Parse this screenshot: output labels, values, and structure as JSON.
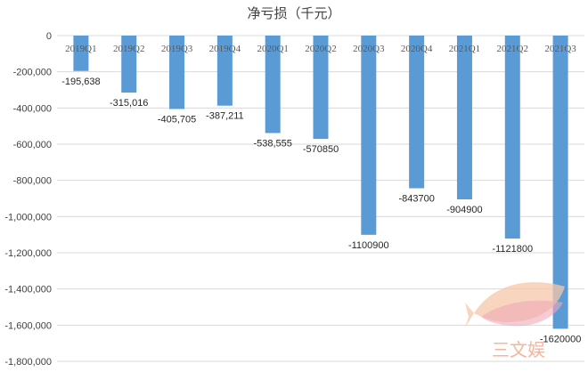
{
  "chart_data": {
    "type": "bar",
    "title": "净亏损（千元）",
    "xlabel": "",
    "ylabel": "",
    "ylim": [
      -1800000,
      0
    ],
    "yticks": [
      0,
      -200000,
      -400000,
      -600000,
      -800000,
      -1000000,
      -1200000,
      -1400000,
      -1600000,
      -1800000
    ],
    "ytick_labels": [
      "0",
      "-200,000",
      "-400,000",
      "-600,000",
      "-800,000",
      "-1,000,000",
      "-1,200,000",
      "-1,400,000",
      "-1,600,000",
      "-1,800,000"
    ],
    "categories": [
      "2019Q1",
      "2019Q2",
      "2019Q3",
      "2019Q4",
      "2020Q1",
      "2020Q2",
      "2020Q3",
      "2020Q4",
      "2021Q1",
      "2021Q2",
      "2021Q3"
    ],
    "values": [
      -195638,
      -315016,
      -405705,
      -387211,
      -538555,
      -570850,
      -1100900,
      -843700,
      -904900,
      -1121800,
      -1620000
    ],
    "data_labels": [
      "-195,638",
      "-315,016",
      "-405,705",
      "-387,211",
      "-538,555",
      "-570850",
      "-1100900",
      "-843700",
      "-904900",
      "-1121800",
      "-1620000"
    ],
    "grid": true,
    "bar_color": "#5b9bd5",
    "grid_color": "#d9d9d9"
  },
  "watermark": {
    "text": "三文娱",
    "color": "#f2a98a"
  }
}
